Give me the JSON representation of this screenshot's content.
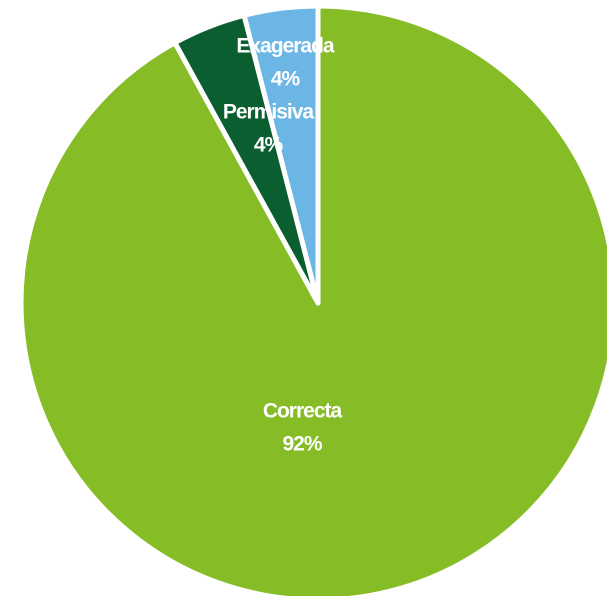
{
  "chart_data": {
    "type": "pie",
    "categories": [
      "Correcta",
      "Permisiva",
      "Exagerada"
    ],
    "values": [
      92,
      4,
      4
    ],
    "value_labels": [
      "92%",
      "4%",
      "4%"
    ],
    "colors": [
      "#86bc25",
      "#0a5e30",
      "#6cb6e6"
    ]
  }
}
